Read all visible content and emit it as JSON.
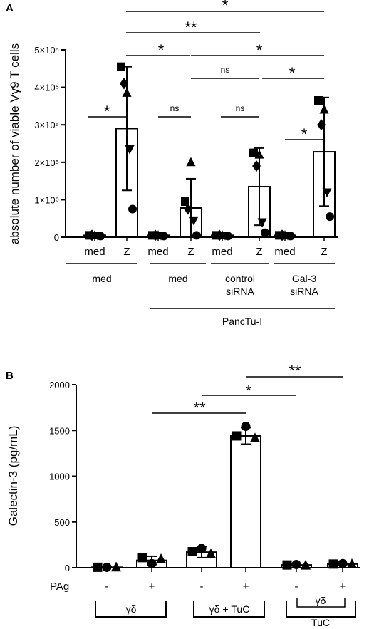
{
  "chart_data": [
    {
      "panel": "A",
      "type": "bar",
      "ylabel": "absolute number of viable Vγ9 T cells",
      "ylim": [
        0,
        500000
      ],
      "yticks": [
        {
          "v": 0,
          "label": "0"
        },
        {
          "v": 100000,
          "label": "1×10⁵"
        },
        {
          "v": 200000,
          "label": "2×10⁵"
        },
        {
          "v": 300000,
          "label": "3×10⁵"
        },
        {
          "v": 400000,
          "label": "4×10⁵"
        },
        {
          "v": 500000,
          "label": "5×10⁵"
        }
      ],
      "categories": [
        "med",
        "Z",
        "med",
        "Z",
        "med",
        "Z",
        "med",
        "Z"
      ],
      "groups": [
        "med",
        "med",
        "control siRNA",
        "Gal-3 siRNA"
      ],
      "outer_group": "PancTu-I",
      "values": [
        5000,
        290000,
        5000,
        78000,
        5000,
        135000,
        5000,
        228000
      ],
      "errors": [
        3000,
        165000,
        3000,
        78000,
        3000,
        103000,
        3000,
        145000
      ],
      "points": [
        [
          {
            "s": "square",
            "y": 5000
          },
          {
            "s": "diamond",
            "y": 5000
          },
          {
            "s": "triangle",
            "y": 5000
          },
          {
            "s": "tridown",
            "y": 5000
          },
          {
            "s": "circle",
            "y": 3000
          }
        ],
        [
          {
            "s": "square",
            "y": 455000
          },
          {
            "s": "diamond",
            "y": 410000
          },
          {
            "s": "triangle",
            "y": 385000
          },
          {
            "s": "tridown",
            "y": 235000
          },
          {
            "s": "circle",
            "y": 75000
          }
        ],
        [
          {
            "s": "square",
            "y": 5000
          },
          {
            "s": "diamond",
            "y": 5000
          },
          {
            "s": "triangle",
            "y": 5000
          },
          {
            "s": "tridown",
            "y": 5000
          },
          {
            "s": "circle",
            "y": 3000
          }
        ],
        [
          {
            "s": "square",
            "y": 95000
          },
          {
            "s": "diamond",
            "y": 75000
          },
          {
            "s": "triangle",
            "y": 200000
          },
          {
            "s": "tridown",
            "y": 45000
          },
          {
            "s": "circle",
            "y": 5000
          }
        ],
        [
          {
            "s": "square",
            "y": 5000
          },
          {
            "s": "diamond",
            "y": 5000
          },
          {
            "s": "triangle",
            "y": 5000
          },
          {
            "s": "tridown",
            "y": 5000
          },
          {
            "s": "circle",
            "y": 3000
          }
        ],
        [
          {
            "s": "square",
            "y": 225000
          },
          {
            "s": "diamond",
            "y": 190000
          },
          {
            "s": "triangle",
            "y": 220000
          },
          {
            "s": "tridown",
            "y": 40000
          },
          {
            "s": "circle",
            "y": 12000
          }
        ],
        [
          {
            "s": "square",
            "y": 5000
          },
          {
            "s": "diamond",
            "y": 5000
          },
          {
            "s": "triangle",
            "y": 5000
          },
          {
            "s": "tridown",
            "y": 5000
          },
          {
            "s": "circle",
            "y": 3000
          }
        ],
        [
          {
            "s": "square",
            "y": 365000
          },
          {
            "s": "diamond",
            "y": 300000
          },
          {
            "s": "triangle",
            "y": 340000
          },
          {
            "s": "tridown",
            "y": 120000
          },
          {
            "s": "circle",
            "y": 55000
          }
        ]
      ],
      "significance": [
        "*",
        "**",
        "*",
        "*",
        "ns",
        "*",
        "*",
        "ns",
        "ns",
        "*"
      ]
    },
    {
      "panel": "B",
      "type": "bar",
      "ylabel": "Galectin-3 (pg/mL)",
      "ylim": [
        0,
        2000
      ],
      "yticks": [
        {
          "v": 0,
          "label": "0"
        },
        {
          "v": 500,
          "label": "500"
        },
        {
          "v": 1000,
          "label": "1000"
        },
        {
          "v": 1500,
          "label": "1500"
        },
        {
          "v": 2000,
          "label": "2000"
        }
      ],
      "row_label": "PAg",
      "categories": [
        "-",
        "+",
        "-",
        "+",
        "-",
        "+"
      ],
      "groups": [
        "γδ",
        "γδ + TuC",
        "γδ",
        "TuC"
      ],
      "values": [
        5,
        80,
        170,
        1440,
        30,
        40
      ],
      "errors": [
        5,
        45,
        60,
        90,
        8,
        5
      ],
      "points": [
        [
          {
            "s": "square",
            "y": 5
          },
          {
            "s": "circle",
            "y": 5
          },
          {
            "s": "triangle",
            "y": 5
          }
        ],
        [
          {
            "s": "square",
            "y": 110
          },
          {
            "s": "circle",
            "y": 45
          },
          {
            "s": "triangle",
            "y": 95
          }
        ],
        [
          {
            "s": "square",
            "y": 175
          },
          {
            "s": "circle",
            "y": 210
          },
          {
            "s": "triangle",
            "y": 150
          }
        ],
        [
          {
            "s": "square",
            "y": 1440
          },
          {
            "s": "circle",
            "y": 1545
          },
          {
            "s": "triangle",
            "y": 1415
          }
        ],
        [
          {
            "s": "square",
            "y": 30
          },
          {
            "s": "circle",
            "y": 35
          },
          {
            "s": "triangle",
            "y": 25
          }
        ],
        [
          {
            "s": "square",
            "y": 40
          },
          {
            "s": "circle",
            "y": 45
          },
          {
            "s": "triangle",
            "y": 40
          }
        ]
      ],
      "significance": [
        "**",
        "*",
        "**"
      ]
    }
  ]
}
